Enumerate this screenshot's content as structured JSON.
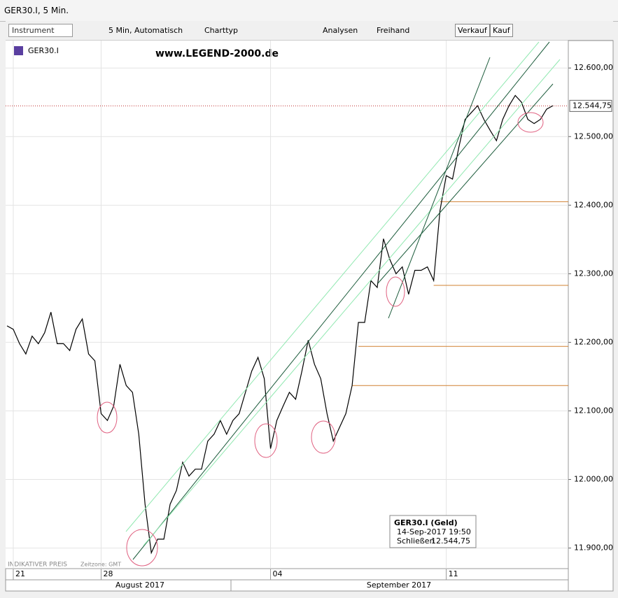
{
  "window": {
    "title": "GER30.I, 5 Min."
  },
  "toolbar": {
    "instrument": "Instrument",
    "interval": "5 Min,  Automatisch",
    "charttype": "Charttyp",
    "analyses": "Analysen",
    "freehand": "Freihand",
    "sell": "Verkauf",
    "buy": "Kauf"
  },
  "chart_data": {
    "type": "line",
    "instrument": "GER30.I",
    "watermark": "www.LEGEND-2000.de",
    "footer": "INDIKATIVER PREIS",
    "timezone": "Zeitzone: GMT",
    "series": [
      {
        "name": "GER30.I",
        "color": "#000000",
        "values": [
          12224,
          12219,
          12198,
          12183,
          12209,
          12198,
          12214,
          12244,
          12198,
          12198,
          12188,
          12219,
          12234,
          12183,
          12173,
          12096,
          12086,
          12107,
          12168,
          12137,
          12127,
          12066,
          11964,
          11893,
          11913,
          11913,
          11964,
          11984,
          12025,
          12005,
          12015,
          12015,
          12056,
          12066,
          12086,
          12066,
          12086,
          12096,
          12127,
          12158,
          12178,
          12147,
          12045,
          12086,
          12107,
          12127,
          12117,
          12158,
          12203,
          12168,
          12147,
          12096,
          12056,
          12076,
          12096,
          12137,
          12229,
          12229,
          12290,
          12280,
          12351,
          12321,
          12300,
          12310,
          12270,
          12305,
          12305,
          12310,
          12290,
          12392,
          12443,
          12438,
          12484,
          12525,
          12535,
          12545,
          12525,
          12509,
          12494,
          12525,
          12545,
          12560,
          12550,
          12525,
          12519,
          12525,
          12540,
          12545
        ]
      }
    ],
    "xlim": [
      0,
      87
    ],
    "xticks": [
      {
        "value": 1,
        "label": "21"
      },
      {
        "value": 15,
        "label": "28"
      },
      {
        "value": 42,
        "label": "04"
      },
      {
        "value": 70,
        "label": "11"
      }
    ],
    "months": [
      "August 2017",
      "September 2017"
    ],
    "ylim": [
      11870,
      12640
    ],
    "yticks": [
      {
        "value": 11900,
        "label": "11.900,00"
      },
      {
        "value": 12000,
        "label": "12.000,00"
      },
      {
        "value": 12100,
        "label": "12.100,00"
      },
      {
        "value": 12200,
        "label": "12.200,00"
      },
      {
        "value": 12300,
        "label": "12.300,00"
      },
      {
        "value": 12400,
        "label": "12.400,00"
      },
      {
        "value": 12500,
        "label": "12.500,00"
      },
      {
        "value": 12600,
        "label": "12.600,00"
      }
    ],
    "grid": true,
    "last_price": {
      "value": 12544.75,
      "label": "12.544,75"
    },
    "levels": [
      12405,
      12283,
      12194,
      12137
    ],
    "tooltip": {
      "title": "GER30.I (Geld)",
      "time": "14-Sep-2017 19:50",
      "close_label": "Schließen",
      "close_value": "12.544,75"
    }
  }
}
